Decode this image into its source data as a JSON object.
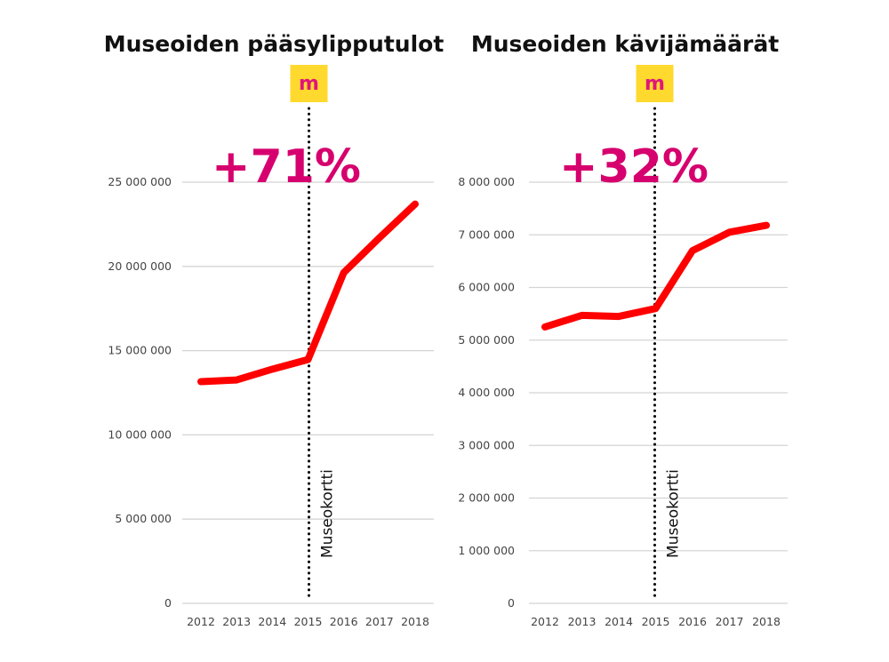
{
  "chart_data": [
    {
      "type": "line",
      "title": "Museoiden pääsylipputulot",
      "categories": [
        "2012",
        "2013",
        "2014",
        "2015",
        "2016",
        "2017",
        "2018"
      ],
      "values": [
        13160000,
        13260000,
        13900000,
        14470000,
        19630000,
        21700000,
        23700000
      ],
      "ylim": [
        0,
        25000000
      ],
      "yticks": [
        0,
        5000000,
        10000000,
        15000000,
        20000000,
        25000000
      ],
      "ytick_labels": [
        "0",
        "5 000 000",
        "10 000 000",
        "15 000 000",
        "20 000 000",
        "25 000 000"
      ],
      "grid": true,
      "line_color": "#ff0000",
      "annotation": {
        "x": "2015",
        "label": "Museokortti",
        "badge": "m"
      },
      "highlight": "+71%"
    },
    {
      "type": "line",
      "title": "Museoiden kävijämäärät",
      "categories": [
        "2012",
        "2013",
        "2014",
        "2015",
        "2016",
        "2017",
        "2018"
      ],
      "values": [
        5250000,
        5470000,
        5450000,
        5600000,
        6700000,
        7050000,
        7180000
      ],
      "ylim": [
        0,
        8000000
      ],
      "yticks": [
        0,
        1000000,
        2000000,
        3000000,
        4000000,
        5000000,
        6000000,
        7000000,
        8000000
      ],
      "ytick_labels": [
        "0",
        "1 000 000",
        "2 000 000",
        "3 000 000",
        "4 000 000",
        "5 000 000",
        "6 000 000",
        "7 000 000",
        "8 000 000"
      ],
      "grid": true,
      "line_color": "#ff0000",
      "annotation": {
        "x": "2015",
        "label": "Museokortti",
        "badge": "m"
      },
      "highlight": "+32%"
    }
  ],
  "colors": {
    "highlight": "#d6006e",
    "badge_bg": "#ffd92e",
    "badge_text": "#e0157a",
    "grid": "#d4d4d4"
  }
}
